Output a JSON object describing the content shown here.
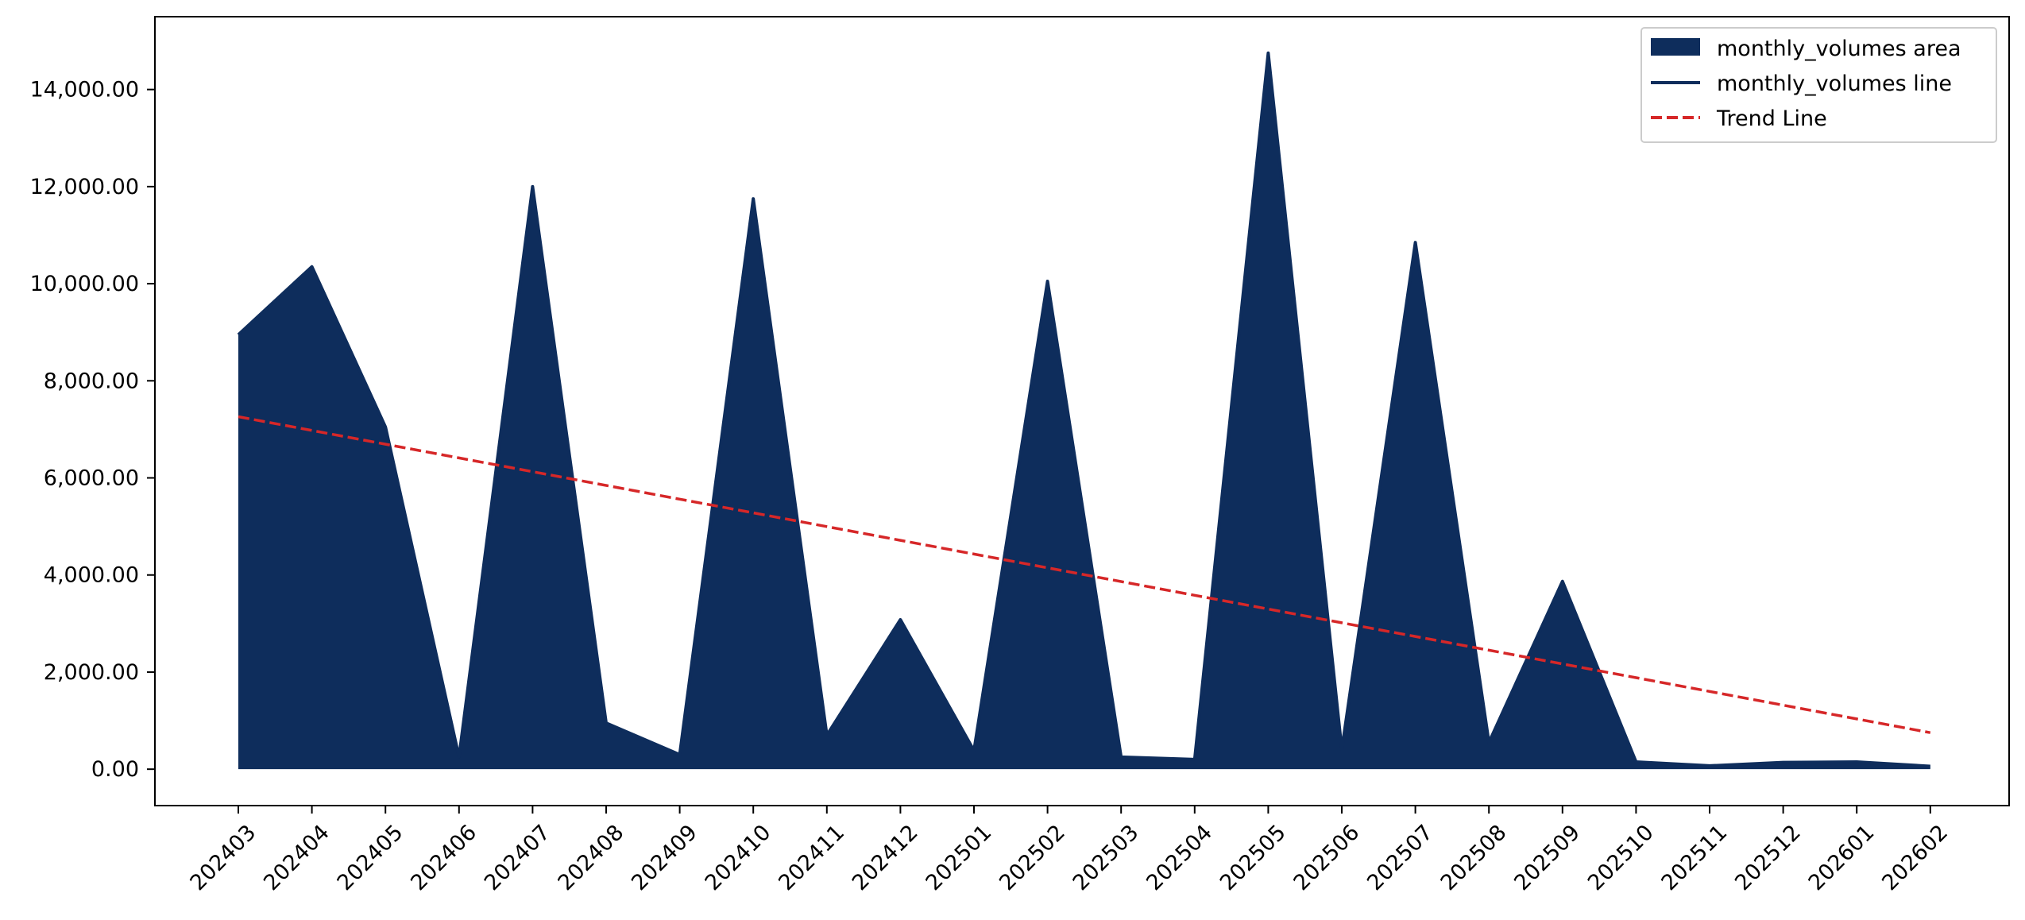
{
  "chart_data": {
    "type": "area",
    "title": "",
    "xlabel": "",
    "ylabel": "",
    "categories": [
      "202403",
      "202404",
      "202405",
      "202406",
      "202407",
      "202408",
      "202409",
      "202410",
      "202411",
      "202412",
      "202501",
      "202502",
      "202503",
      "202504",
      "202505",
      "202506",
      "202507",
      "202508",
      "202509",
      "202510",
      "202511",
      "202512",
      "202601",
      "202602"
    ],
    "series": [
      {
        "name": "monthly_volumes area",
        "kind": "area",
        "color": "#0e2d5c",
        "values": [
          8950,
          10350,
          7050,
          250,
          12000,
          950,
          300,
          11750,
          700,
          3080,
          380,
          10050,
          250,
          200,
          14750,
          400,
          10850,
          550,
          3870,
          150,
          70,
          140,
          150,
          60
        ]
      },
      {
        "name": "monthly_volumes line",
        "kind": "line",
        "color": "#0e2d5c",
        "values": [
          8950,
          10350,
          7050,
          250,
          12000,
          950,
          300,
          11750,
          700,
          3080,
          380,
          10050,
          250,
          200,
          14750,
          400,
          10850,
          550,
          3870,
          150,
          70,
          140,
          150,
          60
        ]
      },
      {
        "name": "Trend Line",
        "kind": "line",
        "style": "dashed",
        "color": "#d62728",
        "values": [
          7260,
          6977,
          6694,
          6411,
          6128,
          5845,
          5562,
          5280,
          4997,
          4714,
          4431,
          4148,
          3865,
          3582,
          3299,
          3016,
          2734,
          2451,
          2168,
          1885,
          1602,
          1319,
          1036,
          753
        ]
      }
    ],
    "ylim": [
      -750,
      15500
    ],
    "yticks": [
      0,
      2000,
      4000,
      6000,
      8000,
      10000,
      12000,
      14000
    ],
    "ytick_labels": [
      "0.00",
      "2,000.00",
      "4,000.00",
      "6,000.00",
      "8,000.00",
      "10,000.00",
      "12,000.00",
      "14,000.00"
    ],
    "grid": false,
    "legend_position": "top-right",
    "legend": [
      "monthly_volumes area",
      "monthly_volumes line",
      "Trend Line"
    ]
  }
}
